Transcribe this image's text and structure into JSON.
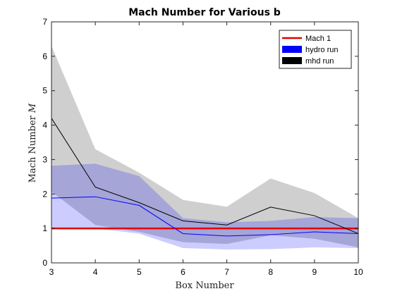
{
  "chart_data": {
    "type": "line",
    "title": "Mach Number for Various b",
    "xlabel": "Box Number",
    "ylabel": "Mach Number M",
    "ylabel_text": "Mach Number ",
    "ylabel_symbol": "M",
    "xlim": [
      3,
      10
    ],
    "ylim": [
      0,
      7
    ],
    "xticks": [
      3,
      4,
      5,
      6,
      7,
      8,
      9,
      10
    ],
    "yticks": [
      0,
      1,
      2,
      3,
      4,
      5,
      6,
      7
    ],
    "grid": false,
    "legend_position": "top-right",
    "x": [
      3,
      4,
      5,
      6,
      7,
      8,
      9,
      10
    ],
    "reference_line": {
      "name": "Mach 1",
      "y": 1,
      "color": "#e00000"
    },
    "series": [
      {
        "name": "mhd run",
        "color": "#000000",
        "band_color": "#cfcfcf",
        "values": [
          4.2,
          2.2,
          1.75,
          1.22,
          1.1,
          1.62,
          1.37,
          0.85
        ],
        "upper": [
          6.3,
          3.3,
          2.62,
          1.83,
          1.63,
          2.45,
          2.03,
          1.3
        ],
        "lower": [
          2.07,
          1.1,
          0.9,
          0.6,
          0.55,
          0.8,
          0.7,
          0.45
        ]
      },
      {
        "name": "hydro run",
        "color": "#0000ff",
        "band_color": "rgba(0,0,255,0.2)",
        "values": [
          1.88,
          1.92,
          1.67,
          0.85,
          0.78,
          0.82,
          0.9,
          0.85
        ],
        "upper": [
          2.82,
          2.88,
          2.52,
          1.3,
          1.18,
          1.22,
          1.33,
          1.3
        ],
        "lower": [
          1.0,
          1.0,
          0.85,
          0.43,
          0.39,
          0.4,
          0.45,
          0.43
        ]
      }
    ],
    "legend": [
      {
        "label": "Mach 1",
        "kind": "line",
        "color": "#e00000"
      },
      {
        "label": "hydro run",
        "kind": "patch",
        "color": "#0000ff"
      },
      {
        "label": "mhd run",
        "kind": "patch",
        "color": "#000000"
      }
    ]
  }
}
